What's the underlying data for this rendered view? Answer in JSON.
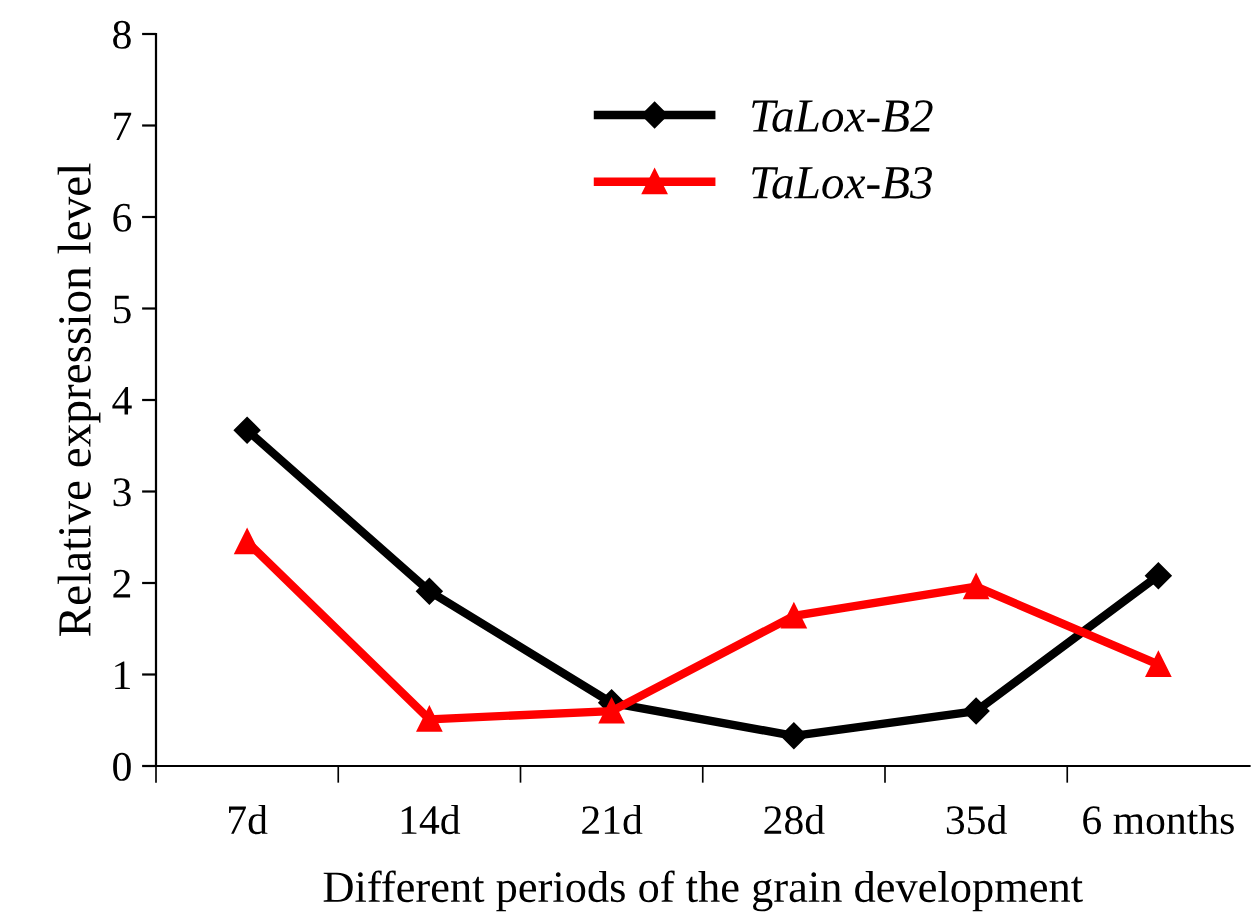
{
  "chart_data": {
    "type": "line",
    "xlabel": "Different periods of the grain development",
    "ylabel": "Relative expression level",
    "categories": [
      "7d",
      "14d",
      "21d",
      "28d",
      "35d",
      "6 months"
    ],
    "series": [
      {
        "name": "TaLox-B2",
        "color": "#000000",
        "marker": "diamond",
        "values": [
          3.67,
          1.91,
          0.69,
          0.33,
          0.6,
          2.08
        ]
      },
      {
        "name": "TaLox-B3",
        "color": "#ff0000",
        "marker": "triangle",
        "values": [
          2.45,
          0.51,
          0.6,
          1.64,
          1.96,
          1.11
        ]
      }
    ],
    "ylim": [
      0,
      8
    ],
    "yticks": [
      0,
      1,
      2,
      3,
      4,
      5,
      6,
      7,
      8
    ],
    "grid": false,
    "legend": "top right",
    "line_style": "solid"
  }
}
